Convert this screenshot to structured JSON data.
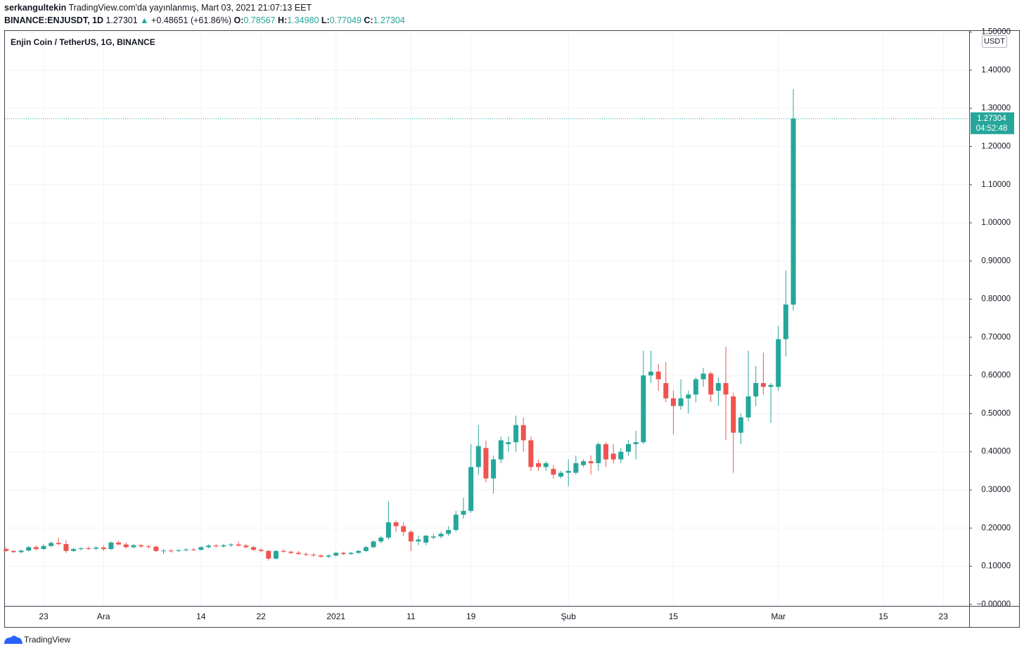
{
  "header": {
    "author": "serkangultekin",
    "published": "TradingView.com'da yayınlanmış, Mart 03, 2021 21:07:13 EET",
    "symbol": "BINANCE:ENJUSDT, 1D",
    "last": "1.27301",
    "change": "+0.48651 (+61.86%)",
    "o_label": "O:",
    "o_value": "0.78567",
    "h_label": "H:",
    "h_value": "1.34980",
    "l_label": "L:",
    "l_value": "0.77049",
    "c_label": "C:",
    "c_value": "1.27304"
  },
  "chart_data": {
    "type": "candlestick",
    "title": "Enjin Coin / TetherUS, 1G, BINANCE",
    "unit": "USDT",
    "countdown": "04:52:48",
    "up_color": "#26a69a",
    "down_color": "#ef5350",
    "grid": true,
    "ylim": [
      -0.004,
      1.503
    ],
    "yticks": [
      {
        "value": 0,
        "label": "−0.00000"
      },
      {
        "value": 0.1,
        "label": "0.10000"
      },
      {
        "value": 0.2,
        "label": "0.20000"
      },
      {
        "value": 0.3,
        "label": "0.30000"
      },
      {
        "value": 0.4,
        "label": "0.40000"
      },
      {
        "value": 0.5,
        "label": "0.50000"
      },
      {
        "value": 0.6,
        "label": "0.60000"
      },
      {
        "value": 0.7,
        "label": "0.70000"
      },
      {
        "value": 0.8,
        "label": "0.80000"
      },
      {
        "value": 0.9,
        "label": "0.90000"
      },
      {
        "value": 1.0,
        "label": "1.00000"
      },
      {
        "value": 1.1,
        "label": "1.10000"
      },
      {
        "value": 1.2,
        "label": "1.20000"
      },
      {
        "value": 1.3,
        "label": "1.30000"
      },
      {
        "value": 1.4,
        "label": "1.40000"
      },
      {
        "value": 1.5,
        "label": "1.50000"
      }
    ],
    "categories": [
      null,
      null,
      null,
      null,
      null,
      "23",
      null,
      null,
      null,
      null,
      null,
      null,
      null,
      "Ara",
      null,
      null,
      null,
      null,
      null,
      null,
      null,
      null,
      null,
      null,
      null,
      null,
      "14",
      null,
      null,
      null,
      null,
      null,
      null,
      null,
      "22",
      null,
      null,
      null,
      null,
      null,
      null,
      null,
      null,
      null,
      "2021",
      null,
      null,
      null,
      null,
      null,
      null,
      null,
      null,
      null,
      "11",
      null,
      null,
      null,
      null,
      null,
      null,
      null,
      "19",
      null,
      null,
      null,
      null,
      null,
      null,
      null,
      null,
      null,
      null,
      null,
      null,
      "Şub",
      null,
      null,
      null,
      null,
      null,
      null,
      null,
      null,
      null,
      null,
      null,
      null,
      null,
      "15",
      null,
      null,
      null,
      null,
      null,
      null,
      null,
      null,
      null,
      null,
      null,
      null,
      null,
      "Mar",
      null,
      null,
      null,
      null,
      null,
      null,
      null,
      null,
      null,
      null,
      null,
      null,
      null,
      "15",
      null,
      null,
      null,
      null,
      null,
      null,
      null,
      "23",
      null,
      null
    ],
    "open": [
      0.145,
      0.14,
      0.137,
      0.141,
      0.15,
      0.145,
      0.153,
      0.161,
      0.158,
      0.14,
      0.145,
      0.147,
      0.146,
      0.149,
      0.145,
      0.162,
      0.157,
      0.15,
      0.155,
      0.152,
      0.151,
      0.14,
      0.141,
      0.14,
      0.142,
      0.144,
      0.143,
      0.15,
      0.154,
      0.152,
      0.155,
      0.157,
      0.154,
      0.15,
      0.143,
      0.14,
      0.12,
      0.14,
      0.138,
      0.135,
      0.132,
      0.13,
      0.128,
      0.125,
      0.128,
      0.135,
      0.132,
      0.135,
      0.14,
      0.15,
      0.165,
      0.175,
      0.215,
      0.205,
      0.19,
      0.165,
      0.162,
      0.175,
      0.178,
      0.185,
      0.195,
      0.235,
      0.245,
      0.36,
      0.41,
      0.33,
      0.38,
      0.42,
      0.425,
      0.47,
      0.43,
      0.37,
      0.36,
      0.355,
      0.335,
      0.345,
      0.345,
      0.365,
      0.375,
      0.37,
      0.42,
      0.395,
      0.38,
      0.4,
      0.42,
      0.425,
      0.6,
      0.61,
      0.58,
      0.54,
      0.52,
      0.54,
      0.55,
      0.59,
      0.605,
      0.56,
      0.58,
      0.545,
      0.45,
      0.49,
      0.545,
      0.58,
      0.57,
      0.57,
      0.695,
      0.78567,
      null,
      null,
      null,
      null,
      null,
      null,
      null,
      null,
      null,
      null,
      null,
      null,
      null,
      null,
      null,
      null,
      null,
      null,
      null,
      null,
      null,
      null
    ],
    "high": [
      0.15,
      0.143,
      0.143,
      0.153,
      0.155,
      0.158,
      0.165,
      0.175,
      0.168,
      0.148,
      0.15,
      0.152,
      0.152,
      0.155,
      0.165,
      0.167,
      0.162,
      0.158,
      0.158,
      0.156,
      0.155,
      0.145,
      0.145,
      0.145,
      0.147,
      0.148,
      0.152,
      0.157,
      0.158,
      0.158,
      0.16,
      0.165,
      0.158,
      0.153,
      0.147,
      0.143,
      0.142,
      0.145,
      0.141,
      0.14,
      0.136,
      0.134,
      0.131,
      0.131,
      0.138,
      0.138,
      0.138,
      0.143,
      0.153,
      0.168,
      0.18,
      0.27,
      0.22,
      0.215,
      0.195,
      0.18,
      0.182,
      0.185,
      0.19,
      0.205,
      0.245,
      0.28,
      0.42,
      0.47,
      0.43,
      0.39,
      0.44,
      0.44,
      0.495,
      0.49,
      0.44,
      0.38,
      0.375,
      0.365,
      0.35,
      0.38,
      0.39,
      0.38,
      0.39,
      0.425,
      0.425,
      0.42,
      0.41,
      0.43,
      0.455,
      0.665,
      0.665,
      0.63,
      0.635,
      0.56,
      0.59,
      0.56,
      0.595,
      0.62,
      0.61,
      0.595,
      0.675,
      0.555,
      0.5,
      0.665,
      0.625,
      0.66,
      0.58,
      0.73,
      0.875,
      1.3498,
      null,
      null,
      null,
      null,
      null,
      null,
      null,
      null,
      null,
      null,
      null,
      null,
      null,
      null,
      null,
      null,
      null,
      null,
      null,
      null,
      null,
      null
    ],
    "low": [
      0.138,
      0.135,
      0.134,
      0.139,
      0.142,
      0.143,
      0.15,
      0.155,
      0.135,
      0.137,
      0.141,
      0.143,
      0.142,
      0.14,
      0.143,
      0.155,
      0.146,
      0.147,
      0.148,
      0.147,
      0.137,
      0.132,
      0.136,
      0.137,
      0.139,
      0.14,
      0.141,
      0.147,
      0.149,
      0.149,
      0.151,
      0.152,
      0.147,
      0.14,
      0.136,
      0.115,
      0.118,
      0.135,
      0.132,
      0.13,
      0.127,
      0.125,
      0.122,
      0.121,
      0.126,
      0.129,
      0.13,
      0.132,
      0.137,
      0.147,
      0.16,
      0.17,
      0.19,
      0.18,
      0.14,
      0.155,
      0.155,
      0.17,
      0.173,
      0.18,
      0.19,
      0.225,
      0.24,
      0.34,
      0.32,
      0.29,
      0.37,
      0.4,
      0.4,
      0.4,
      0.35,
      0.35,
      0.35,
      0.33,
      0.33,
      0.31,
      0.34,
      0.36,
      0.34,
      0.35,
      0.36,
      0.37,
      0.37,
      0.39,
      0.38,
      0.42,
      0.58,
      0.56,
      0.53,
      0.445,
      0.51,
      0.5,
      0.53,
      0.57,
      0.53,
      0.52,
      0.43,
      0.345,
      0.42,
      0.48,
      0.52,
      0.55,
      0.475,
      0.56,
      0.65,
      0.77049,
      null,
      null,
      null,
      null,
      null,
      null,
      null,
      null,
      null,
      null,
      null,
      null,
      null,
      null,
      null,
      null,
      null,
      null,
      null,
      null,
      null,
      null
    ],
    "close": [
      0.14,
      0.137,
      0.141,
      0.15,
      0.145,
      0.153,
      0.161,
      0.158,
      0.14,
      0.145,
      0.147,
      0.146,
      0.149,
      0.145,
      0.162,
      0.157,
      0.15,
      0.155,
      0.152,
      0.151,
      0.14,
      0.141,
      0.14,
      0.142,
      0.144,
      0.143,
      0.15,
      0.154,
      0.152,
      0.155,
      0.157,
      0.154,
      0.15,
      0.143,
      0.14,
      0.12,
      0.14,
      0.138,
      0.135,
      0.132,
      0.13,
      0.128,
      0.125,
      0.128,
      0.135,
      0.132,
      0.135,
      0.14,
      0.15,
      0.165,
      0.175,
      0.215,
      0.205,
      0.19,
      0.165,
      0.17,
      0.18,
      0.178,
      0.185,
      0.195,
      0.235,
      0.245,
      0.36,
      0.415,
      0.33,
      0.38,
      0.43,
      0.425,
      0.47,
      0.43,
      0.36,
      0.36,
      0.37,
      0.34,
      0.345,
      0.35,
      0.37,
      0.375,
      0.37,
      0.42,
      0.38,
      0.38,
      0.4,
      0.42,
      0.425,
      0.6,
      0.61,
      0.59,
      0.54,
      0.52,
      0.54,
      0.55,
      0.59,
      0.605,
      0.55,
      0.58,
      0.55,
      0.45,
      0.49,
      0.545,
      0.58,
      0.57,
      0.575,
      0.695,
      0.786,
      1.27304,
      null,
      null,
      null,
      null,
      null,
      null,
      null,
      null,
      null,
      null,
      null,
      null,
      null,
      null,
      null,
      null,
      null,
      null,
      null,
      null,
      null,
      null
    ]
  },
  "footer": {
    "brand": "TradingView"
  }
}
